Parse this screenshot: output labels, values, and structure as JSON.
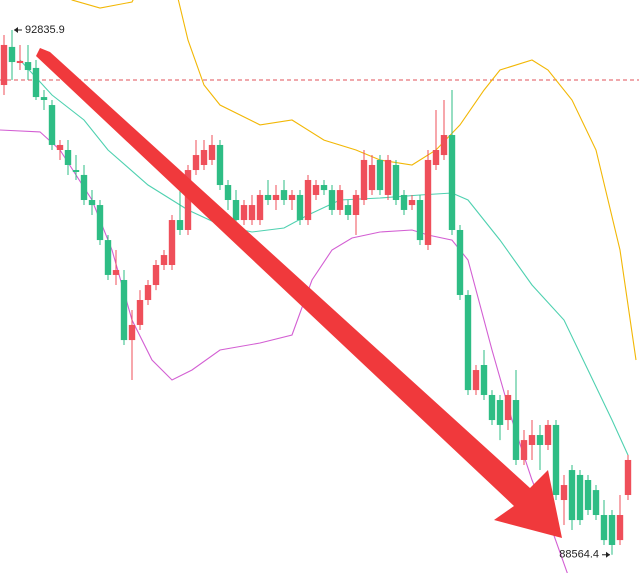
{
  "chart_data": {
    "type": "candlestick",
    "ylim": [
      88416,
      93080
    ],
    "up_color": "#ef4f5a",
    "down_color": "#2ebd85",
    "open": [
      92388,
      92698,
      92567,
      92575,
      92527,
      92290,
      92225,
      91859,
      91859,
      91696,
      91656,
      91452,
      91411,
      91126,
      90842,
      90801,
      90312,
      90435,
      90638,
      90760,
      90923,
      90923,
      91289,
      91208,
      91696,
      91737,
      91778,
      91900,
      91574,
      91452,
      91289,
      91289,
      91289,
      91493,
      91452,
      91533,
      91452,
      91493,
      91289,
      91493,
      91574,
      91533,
      91371,
      91411,
      91330,
      91452,
      91533,
      91778,
      91493,
      91737,
      91493,
      91411,
      91452,
      91086,
      91737,
      91818,
      91981,
      91208,
      90679,
      89905,
      90109,
      89865,
      89824,
      89661,
      89824,
      89336,
      89458,
      89539,
      89458,
      89621,
      89010,
      89254,
      89214,
      89173,
      89091,
      88888,
      88888,
      88684,
      89051
    ],
    "high": [
      92795,
      92835.9,
      92714,
      92714,
      92592,
      92347,
      92266,
      91940,
      91940,
      91818,
      91737,
      91533,
      91452,
      91167,
      91045,
      90882,
      90557,
      90719,
      90801,
      90964,
      91045,
      91330,
      91615,
      91737,
      91940,
      91940,
      91981,
      91940,
      91615,
      91533,
      91452,
      91493,
      91533,
      91615,
      91574,
      91615,
      91533,
      91533,
      91656,
      91615,
      91615,
      91574,
      91574,
      91452,
      91533,
      91859,
      91818,
      91818,
      91818,
      91778,
      91533,
      91493,
      91493,
      91859,
      92185,
      92266,
      92347,
      91249,
      90719,
      90109,
      90231,
      89905,
      89865,
      89905,
      90068,
      89580,
      89661,
      89621,
      89661,
      89661,
      89214,
      89295,
      89254,
      89214,
      89132,
      89010,
      88929,
      89051,
      89376
    ],
    "low": [
      92307,
      92429,
      92510,
      92429,
      92266,
      92185,
      91859,
      91778,
      91656,
      91615,
      91411,
      91330,
      91086,
      90801,
      90760,
      90272,
      89987,
      90394,
      90597,
      90719,
      90882,
      90882,
      91167,
      91167,
      91656,
      91696,
      91737,
      91533,
      91371,
      91208,
      91249,
      91249,
      91249,
      91411,
      91371,
      91411,
      91371,
      91249,
      91249,
      91452,
      91493,
      91330,
      91330,
      91289,
      91167,
      91411,
      91493,
      91493,
      91452,
      91411,
      91330,
      91371,
      91086,
      91045,
      91696,
      91778,
      91167,
      90638,
      89865,
      89865,
      89824,
      89621,
      89498,
      89580,
      89295,
      89295,
      89336,
      89254,
      89417,
      89010,
      88807,
      88766,
      88807,
      88888,
      88847,
      88644,
      88564.4,
      88644,
      89010
    ],
    "close": [
      92714,
      92575,
      92584,
      92510,
      92290,
      92266,
      91900,
      91900,
      91737,
      91680,
      91452,
      91411,
      91126,
      90842,
      90882,
      90312,
      90435,
      90638,
      90760,
      90923,
      91004,
      91289,
      91208,
      91696,
      91818,
      91859,
      91900,
      91574,
      91452,
      91289,
      91411,
      91411,
      91493,
      91452,
      91493,
      91452,
      91493,
      91289,
      91615,
      91574,
      91533,
      91371,
      91533,
      91330,
      91493,
      91778,
      91737,
      91533,
      91778,
      91452,
      91371,
      91452,
      91126,
      91778,
      91859,
      91981,
      91208,
      90679,
      89905,
      90068,
      89865,
      89661,
      89621,
      89865,
      89336,
      89498,
      89539,
      89458,
      89621,
      89051,
      89132,
      88847,
      88847,
      88929,
      88888,
      88684,
      88644,
      88888,
      89336
    ],
    "bands": [
      {
        "color": "#f2b705",
        "x": [
          5,
          8.5,
          12,
          16,
          20,
          23,
          25,
          27,
          32,
          36,
          40,
          44,
          47,
          51,
          54,
          57,
          60,
          62,
          66,
          68,
          71,
          74,
          77,
          79
        ],
        "values": [
          93406,
          93080,
          93015,
          93064,
          93568,
          92754,
          92388,
          92225,
          92063,
          92103,
          91940,
          91859,
          91778,
          91737,
          91859,
          92063,
          92347,
          92510,
          92592,
          92510,
          92266,
          91859,
          91045,
          90150
        ]
      },
      {
        "color": "#4fd1b0",
        "x": [
          2,
          6,
          10,
          13,
          18,
          23,
          27,
          31,
          35,
          38,
          42,
          47,
          52,
          56,
          58,
          62,
          66,
          70,
          73,
          76,
          78
        ],
        "values": [
          92592,
          92307,
          92103,
          91859,
          91574,
          91371,
          91249,
          91192,
          91224,
          91330,
          91452,
          91468,
          91493,
          91509,
          91452,
          91126,
          90760,
          90475,
          90068,
          89661,
          89376
        ]
      },
      {
        "color": "#d35fd3",
        "x": [
          -0.5,
          4.5,
          7,
          11,
          13.5,
          16,
          18.5,
          21,
          23.5,
          27,
          32,
          36,
          38.5,
          41,
          43.5,
          47,
          51,
          53,
          56,
          58,
          61,
          63.5,
          66,
          68.5,
          70.5
        ],
        "values": [
          92022,
          92006,
          91859,
          91452,
          91045,
          90475,
          90150,
          89987,
          90068,
          90231,
          90288,
          90353,
          90801,
          91045,
          91143,
          91192,
          91208,
          91167,
          91126,
          90964,
          90231,
          89661,
          89173,
          88766,
          88400
        ]
      }
    ],
    "hline": {
      "value": 92429,
      "color": "#e0505a"
    },
    "annotations": [
      {
        "value": 92835.9,
        "at": "high"
      },
      {
        "value": 88564.4,
        "at": "low"
      }
    ]
  }
}
